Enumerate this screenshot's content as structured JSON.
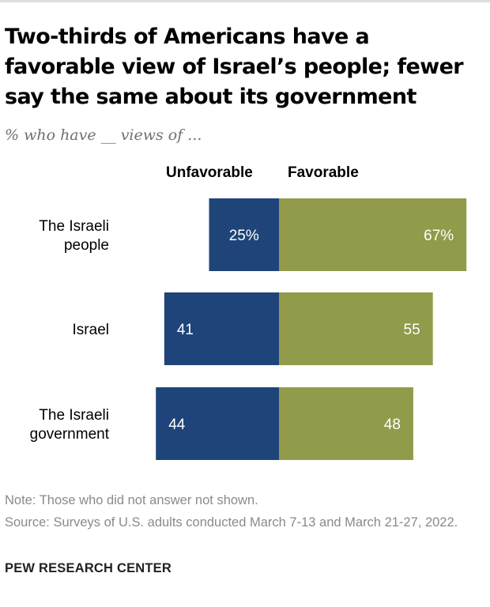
{
  "title": "Two-thirds of Americans have a favorable view of Israel’s people; fewer say the same about its government",
  "subtitle": "% who have __ views of ...",
  "colors": {
    "unfavorable": "#1f4479",
    "favorable": "#919b4a",
    "topbar": "#dddddd"
  },
  "chart_data": {
    "type": "bar",
    "orientation": "horizontal-diverging",
    "categories": [
      [
        "The Israeli",
        "people"
      ],
      [
        "Israel"
      ],
      [
        "The Israeli",
        "government"
      ]
    ],
    "series": [
      {
        "name": "Unfavorable",
        "values": [
          25,
          41,
          44
        ],
        "labels": [
          "25%",
          "41",
          "44"
        ]
      },
      {
        "name": "Favorable",
        "values": [
          67,
          55,
          48
        ],
        "labels": [
          "67%",
          "55",
          "48"
        ]
      }
    ]
  },
  "note": "Note: Those who did not answer not shown.",
  "source": "Source: Surveys of U.S. adults conducted March 7-13 and March 21-27, 2022.",
  "brand": "PEW RESEARCH CENTER"
}
